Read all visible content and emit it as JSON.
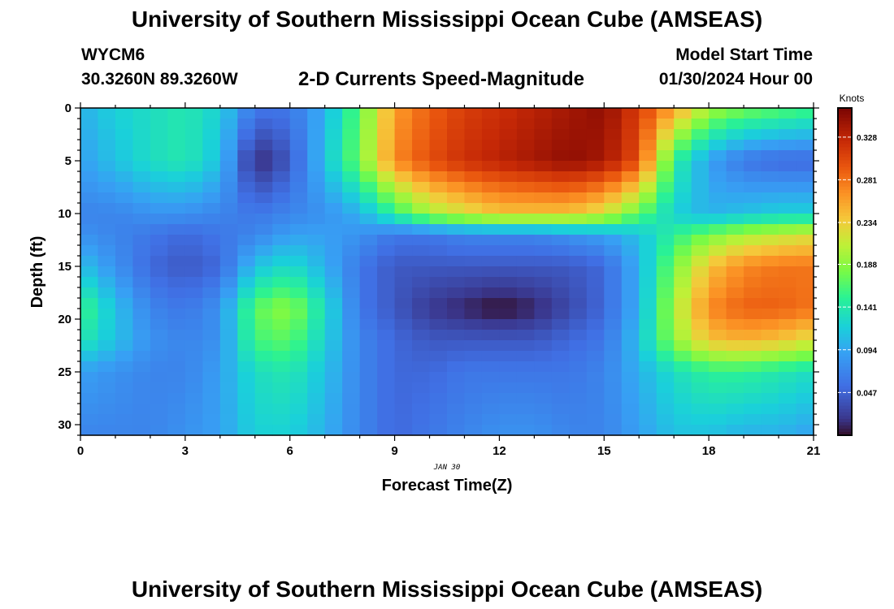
{
  "page": {
    "title": "University of Southern Mississippi Ocean Cube (AMSEAS)",
    "title_repeat": "University of Southern Mississippi Ocean Cube (AMSEAS)",
    "station_id": "WYCM6",
    "station_coords": "30.3260N  89.3260W",
    "plot_title": "2-D Currents Speed-Magnitude",
    "model_start_label": "Model Start Time",
    "model_start_value": "01/30/2024 Hour 00"
  },
  "chart_data": {
    "type": "heatmap",
    "title": "2-D Currents Speed-Magnitude",
    "xlabel": "Forecast Time(Z)",
    "ylabel": "Depth (ft)",
    "date_label": "JAN 30",
    "x_range": [
      0,
      21
    ],
    "y_range": [
      0,
      31
    ],
    "y_inverted": true,
    "x_ticks": [
      0,
      3,
      6,
      9,
      12,
      15,
      18,
      21
    ],
    "y_ticks": [
      0,
      5,
      10,
      15,
      20,
      25,
      30
    ],
    "colorbar": {
      "label": "Knots",
      "range": [
        0.0,
        0.36
      ],
      "ticks": [
        "0.047",
        "0.094",
        "0.141",
        "0.188",
        "0.234",
        "0.281",
        "0.328"
      ]
    },
    "hour_columns": [
      0,
      1,
      2,
      3,
      4,
      5,
      6,
      7,
      8,
      9,
      10,
      11,
      12,
      13,
      14,
      15,
      16,
      17,
      18,
      19,
      20,
      21
    ],
    "depth_rows": [
      0,
      5,
      10,
      12,
      15,
      19,
      22,
      25,
      31
    ],
    "values": [
      [
        0.1,
        0.12,
        0.13,
        0.14,
        0.12,
        0.06,
        0.06,
        0.1,
        0.17,
        0.26,
        0.29,
        0.31,
        0.32,
        0.33,
        0.34,
        0.35,
        0.31,
        0.26,
        0.2,
        0.18,
        0.17,
        0.16
      ],
      [
        0.09,
        0.11,
        0.13,
        0.14,
        0.11,
        0.01,
        0.04,
        0.11,
        0.18,
        0.27,
        0.3,
        0.32,
        0.33,
        0.34,
        0.35,
        0.34,
        0.3,
        0.15,
        0.09,
        0.06,
        0.05,
        0.05
      ],
      [
        0.07,
        0.07,
        0.08,
        0.08,
        0.07,
        0.06,
        0.07,
        0.08,
        0.1,
        0.15,
        0.2,
        0.22,
        0.24,
        0.24,
        0.24,
        0.22,
        0.17,
        0.12,
        0.1,
        0.11,
        0.12,
        0.12
      ],
      [
        0.08,
        0.07,
        0.06,
        0.05,
        0.06,
        0.07,
        0.09,
        0.09,
        0.08,
        0.06,
        0.06,
        0.07,
        0.07,
        0.07,
        0.08,
        0.09,
        0.11,
        0.15,
        0.18,
        0.2,
        0.21,
        0.22
      ],
      [
        0.11,
        0.08,
        0.05,
        0.04,
        0.05,
        0.11,
        0.13,
        0.1,
        0.06,
        0.04,
        0.04,
        0.04,
        0.04,
        0.04,
        0.04,
        0.05,
        0.1,
        0.18,
        0.24,
        0.27,
        0.28,
        0.28
      ],
      [
        0.16,
        0.11,
        0.07,
        0.06,
        0.08,
        0.17,
        0.19,
        0.13,
        0.06,
        0.04,
        0.02,
        0.01,
        0.0,
        0.01,
        0.03,
        0.05,
        0.1,
        0.2,
        0.27,
        0.29,
        0.29,
        0.28
      ],
      [
        0.14,
        0.11,
        0.08,
        0.07,
        0.08,
        0.16,
        0.17,
        0.12,
        0.07,
        0.05,
        0.04,
        0.04,
        0.04,
        0.04,
        0.05,
        0.06,
        0.11,
        0.19,
        0.24,
        0.25,
        0.24,
        0.22
      ],
      [
        0.09,
        0.08,
        0.07,
        0.07,
        0.09,
        0.13,
        0.14,
        0.11,
        0.07,
        0.05,
        0.05,
        0.06,
        0.06,
        0.06,
        0.06,
        0.07,
        0.1,
        0.13,
        0.15,
        0.15,
        0.14,
        0.13
      ],
      [
        0.07,
        0.07,
        0.07,
        0.08,
        0.09,
        0.12,
        0.12,
        0.1,
        0.07,
        0.05,
        0.06,
        0.07,
        0.08,
        0.08,
        0.07,
        0.07,
        0.09,
        0.11,
        0.11,
        0.1,
        0.1,
        0.09
      ]
    ]
  }
}
